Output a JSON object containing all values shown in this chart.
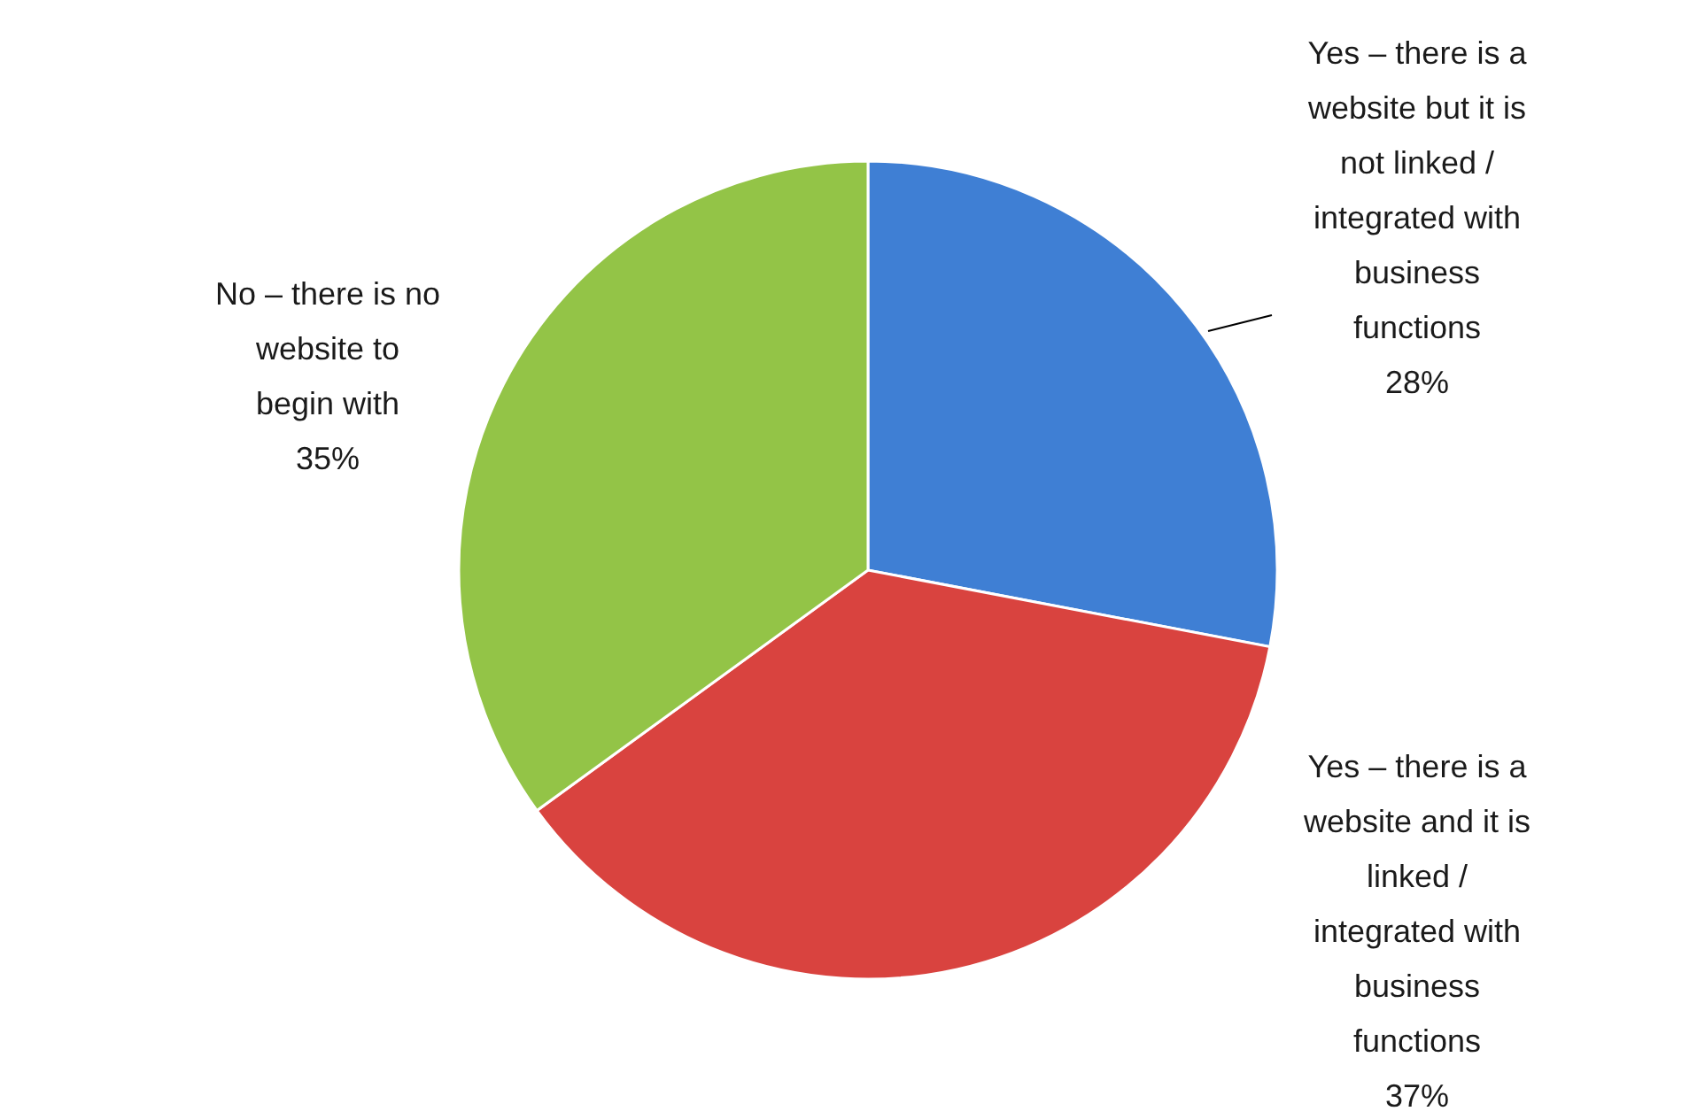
{
  "chart_data": {
    "type": "pie",
    "categories": [
      "Yes – there is a\nwebsite but it is\nnot linked /\nintegrated with\nbusiness\nfunctions",
      "Yes – there is a\nwebsite and it is\nlinked /\nintegrated with\nbusiness\nfunctions",
      "No – there is no\nwebsite to\nbegin with"
    ],
    "values": [
      28,
      37,
      35
    ],
    "value_labels": [
      "28%",
      "37%",
      "35%"
    ],
    "colors": [
      "#3f7fd4",
      "#d9433f",
      "#93c447"
    ]
  }
}
